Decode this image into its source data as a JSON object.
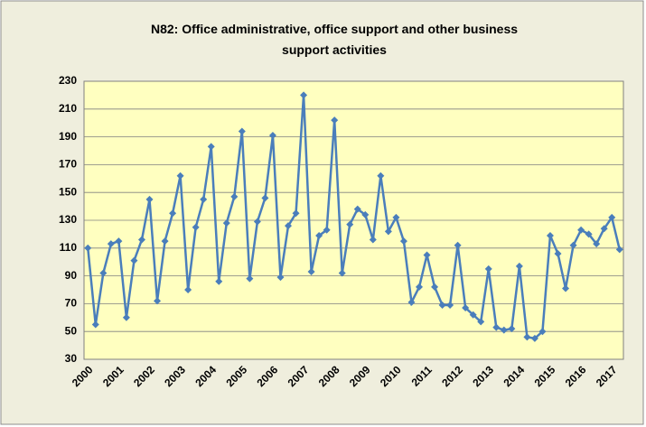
{
  "chart_data": {
    "type": "line",
    "title": "N82: Office administrative, office support and other business support activities",
    "categories": [
      "2000",
      null,
      null,
      null,
      "2001",
      null,
      null,
      null,
      "2002",
      null,
      null,
      null,
      "2003",
      null,
      null,
      null,
      "2004",
      null,
      null,
      null,
      "2005",
      null,
      null,
      null,
      "2006",
      null,
      null,
      null,
      "2007",
      null,
      null,
      null,
      "2008",
      null,
      null,
      null,
      "2009",
      null,
      null,
      null,
      "2010",
      null,
      null,
      null,
      "2011",
      null,
      null,
      null,
      "2012",
      null,
      null,
      null,
      "2013",
      null,
      null,
      null,
      "2014",
      null,
      null,
      null,
      "2015",
      null,
      null,
      null,
      "2016",
      null,
      null,
      null,
      "2017",
      null
    ],
    "values": [
      110,
      55,
      92,
      113,
      115,
      60,
      101,
      116,
      145,
      72,
      115,
      135,
      162,
      80,
      125,
      145,
      183,
      86,
      128,
      147,
      194,
      88,
      129,
      146,
      191,
      89,
      126,
      135,
      220,
      93,
      119,
      123,
      202,
      92,
      127,
      138,
      134,
      116,
      162,
      122,
      132,
      115,
      71,
      82,
      105,
      82,
      69,
      69,
      112,
      67,
      62,
      57,
      95,
      53,
      51,
      52,
      97,
      46,
      45,
      50,
      119,
      106,
      81,
      112,
      123,
      120,
      113,
      124,
      132,
      109
    ],
    "color": "#4a7ebb",
    "ylim": [
      30,
      230
    ],
    "yticks": [
      30,
      50,
      70,
      90,
      110,
      130,
      150,
      170,
      190,
      210,
      230
    ],
    "grid": true
  }
}
